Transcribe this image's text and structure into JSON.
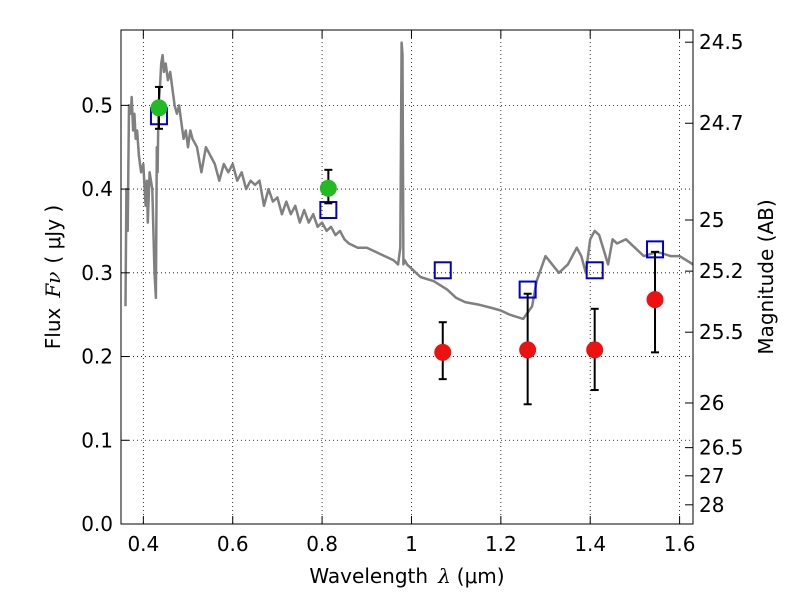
{
  "chart_data": {
    "type": "scatter",
    "title": "",
    "xlabel_main": "Wavelength",
    "xlabel_symbol": "λ",
    "xlabel_unit": "(μm)",
    "ylabel_main": "Flux",
    "ylabel_symbol": "Fν",
    "ylabel_unit": "( μJy )",
    "y2label": "Magnitude (AB)",
    "xlim": [
      0.35,
      1.63
    ],
    "ylim": [
      0.0,
      0.59
    ],
    "grid": true,
    "x_ticks": [
      {
        "value": 0.4,
        "label": "0.4"
      },
      {
        "value": 0.6,
        "label": "0.6"
      },
      {
        "value": 0.8,
        "label": "0.8"
      },
      {
        "value": 1.0,
        "label": "1"
      },
      {
        "value": 1.2,
        "label": "1.2"
      },
      {
        "value": 1.4,
        "label": "1.4"
      },
      {
        "value": 1.6,
        "label": "1.6"
      }
    ],
    "y_ticks": [
      {
        "value": 0.0,
        "label": "0.0"
      },
      {
        "value": 0.1,
        "label": "0.1"
      },
      {
        "value": 0.2,
        "label": "0.2"
      },
      {
        "value": 0.3,
        "label": "0.3"
      },
      {
        "value": 0.4,
        "label": "0.4"
      },
      {
        "value": 0.5,
        "label": "0.5"
      }
    ],
    "y2_ticks": [
      {
        "value": 24.5,
        "label": "24.5"
      },
      {
        "value": 24.7,
        "label": "24.7"
      },
      {
        "value": 25.0,
        "label": "25"
      },
      {
        "value": 25.2,
        "label": "25.2"
      },
      {
        "value": 25.5,
        "label": "25.5"
      },
      {
        "value": 26.0,
        "label": "26"
      },
      {
        "value": 26.5,
        "label": "26.5"
      },
      {
        "value": 27.0,
        "label": "27"
      },
      {
        "value": 28.0,
        "label": "28"
      }
    ],
    "series": [
      {
        "role": "model spectrum",
        "kind": "line",
        "color": "#808080",
        "x": [
          0.36,
          0.362,
          0.365,
          0.368,
          0.372,
          0.374,
          0.377,
          0.38,
          0.383,
          0.386,
          0.39,
          0.395,
          0.4,
          0.405,
          0.408,
          0.41,
          0.414,
          0.42,
          0.425,
          0.428,
          0.43,
          0.432,
          0.434,
          0.437,
          0.44,
          0.443,
          0.446,
          0.45,
          0.455,
          0.46,
          0.465,
          0.47,
          0.475,
          0.48,
          0.485,
          0.49,
          0.495,
          0.5,
          0.505,
          0.51,
          0.52,
          0.53,
          0.54,
          0.55,
          0.56,
          0.57,
          0.58,
          0.59,
          0.6,
          0.61,
          0.62,
          0.63,
          0.64,
          0.65,
          0.66,
          0.67,
          0.68,
          0.69,
          0.7,
          0.71,
          0.72,
          0.73,
          0.74,
          0.75,
          0.76,
          0.77,
          0.78,
          0.79,
          0.8,
          0.81,
          0.82,
          0.83,
          0.84,
          0.85,
          0.86,
          0.88,
          0.9,
          0.92,
          0.94,
          0.96,
          0.97,
          0.975,
          0.978,
          0.98,
          0.982,
          0.985,
          0.99,
          1.0,
          1.02,
          1.05,
          1.08,
          1.1,
          1.12,
          1.15,
          1.18,
          1.2,
          1.22,
          1.25,
          1.27,
          1.28,
          1.3,
          1.33,
          1.35,
          1.37,
          1.38,
          1.39,
          1.4,
          1.41,
          1.42,
          1.44,
          1.45,
          1.46,
          1.48,
          1.5,
          1.52,
          1.55,
          1.58,
          1.6,
          1.63
        ],
        "y": [
          0.26,
          0.4,
          0.35,
          0.5,
          0.49,
          0.51,
          0.47,
          0.49,
          0.46,
          0.47,
          0.44,
          0.42,
          0.43,
          0.38,
          0.41,
          0.36,
          0.42,
          0.4,
          0.3,
          0.27,
          0.45,
          0.42,
          0.5,
          0.52,
          0.55,
          0.56,
          0.54,
          0.55,
          0.53,
          0.54,
          0.52,
          0.5,
          0.49,
          0.5,
          0.48,
          0.46,
          0.47,
          0.45,
          0.47,
          0.46,
          0.45,
          0.42,
          0.45,
          0.44,
          0.43,
          0.41,
          0.43,
          0.42,
          0.43,
          0.41,
          0.42,
          0.4,
          0.41,
          0.405,
          0.41,
          0.38,
          0.4,
          0.385,
          0.39,
          0.37,
          0.385,
          0.37,
          0.38,
          0.36,
          0.375,
          0.36,
          0.37,
          0.355,
          0.36,
          0.35,
          0.355,
          0.345,
          0.35,
          0.34,
          0.335,
          0.33,
          0.33,
          0.325,
          0.32,
          0.315,
          0.31,
          0.33,
          0.575,
          0.56,
          0.31,
          0.315,
          0.31,
          0.305,
          0.295,
          0.29,
          0.28,
          0.27,
          0.265,
          0.262,
          0.258,
          0.255,
          0.25,
          0.245,
          0.26,
          0.29,
          0.32,
          0.3,
          0.31,
          0.33,
          0.32,
          0.3,
          0.34,
          0.35,
          0.345,
          0.31,
          0.34,
          0.335,
          0.34,
          0.33,
          0.32,
          0.325,
          0.32,
          0.32,
          0.31
        ]
      },
      {
        "role": "model photometry",
        "kind": "marker",
        "marker": "open-square",
        "color": "#0000cc",
        "x": [
          0.435,
          0.814,
          1.07,
          1.26,
          1.41,
          1.545
        ],
        "y": [
          0.487,
          0.375,
          0.303,
          0.28,
          0.303,
          0.328
        ]
      },
      {
        "role": "observed optical",
        "kind": "marker-errorbar",
        "marker": "filled-circle",
        "color": "#22bb22",
        "x": [
          0.435,
          0.814
        ],
        "y": [
          0.497,
          0.401
        ],
        "yerr_low": [
          0.025,
          0.018
        ],
        "yerr_high": [
          0.025,
          0.022
        ]
      },
      {
        "role": "observed near-infrared",
        "kind": "marker-errorbar",
        "marker": "filled-circle",
        "color": "#ee1111",
        "x": [
          1.07,
          1.26,
          1.41,
          1.545
        ],
        "y": [
          0.205,
          0.208,
          0.208,
          0.268
        ],
        "yerr_low": [
          0.032,
          0.065,
          0.048,
          0.063
        ],
        "yerr_high": [
          0.036,
          0.067,
          0.049,
          0.057
        ]
      }
    ]
  }
}
